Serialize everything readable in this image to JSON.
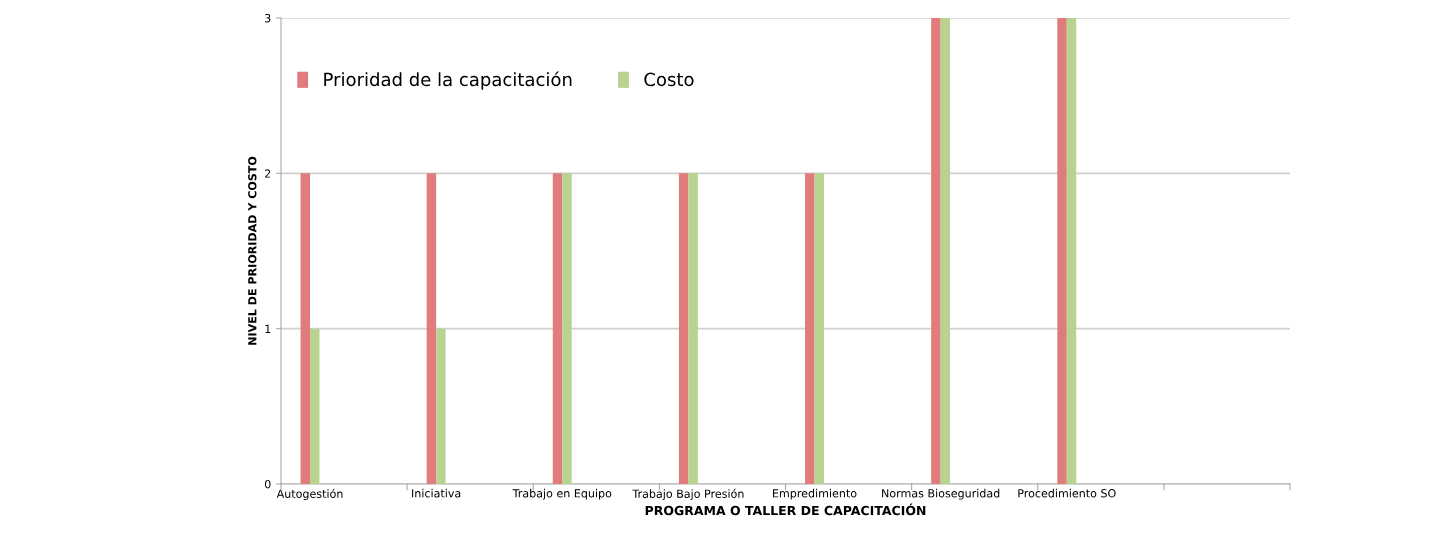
{
  "chart_data": {
    "type": "bar",
    "xlabel": "PROGRAMA O TALLER DE CAPACITACIÓN",
    "ylabel": "NIVEL DE PRIORIDAD Y COSTO",
    "categories": [
      "Autogestión",
      "Iniciativa",
      "Trabajo en Equipo",
      "Trabajo Bajo Presión",
      "Empredimiento",
      "Normas Bioseguridad",
      "Procedimiento SO",
      null
    ],
    "series": [
      {
        "name": "Prioridad de la capacitación",
        "color": "#e07c7c",
        "values": [
          2,
          2,
          2,
          2,
          2,
          3,
          3,
          null
        ]
      },
      {
        "name": "Costo",
        "color": "#b8d38f",
        "values": [
          1,
          1,
          2,
          2,
          2,
          3,
          3,
          null
        ]
      }
    ],
    "ylim": [
      0,
      3
    ],
    "yticks": [
      0,
      1,
      2,
      3
    ],
    "grid": "y",
    "legend": "top left"
  }
}
